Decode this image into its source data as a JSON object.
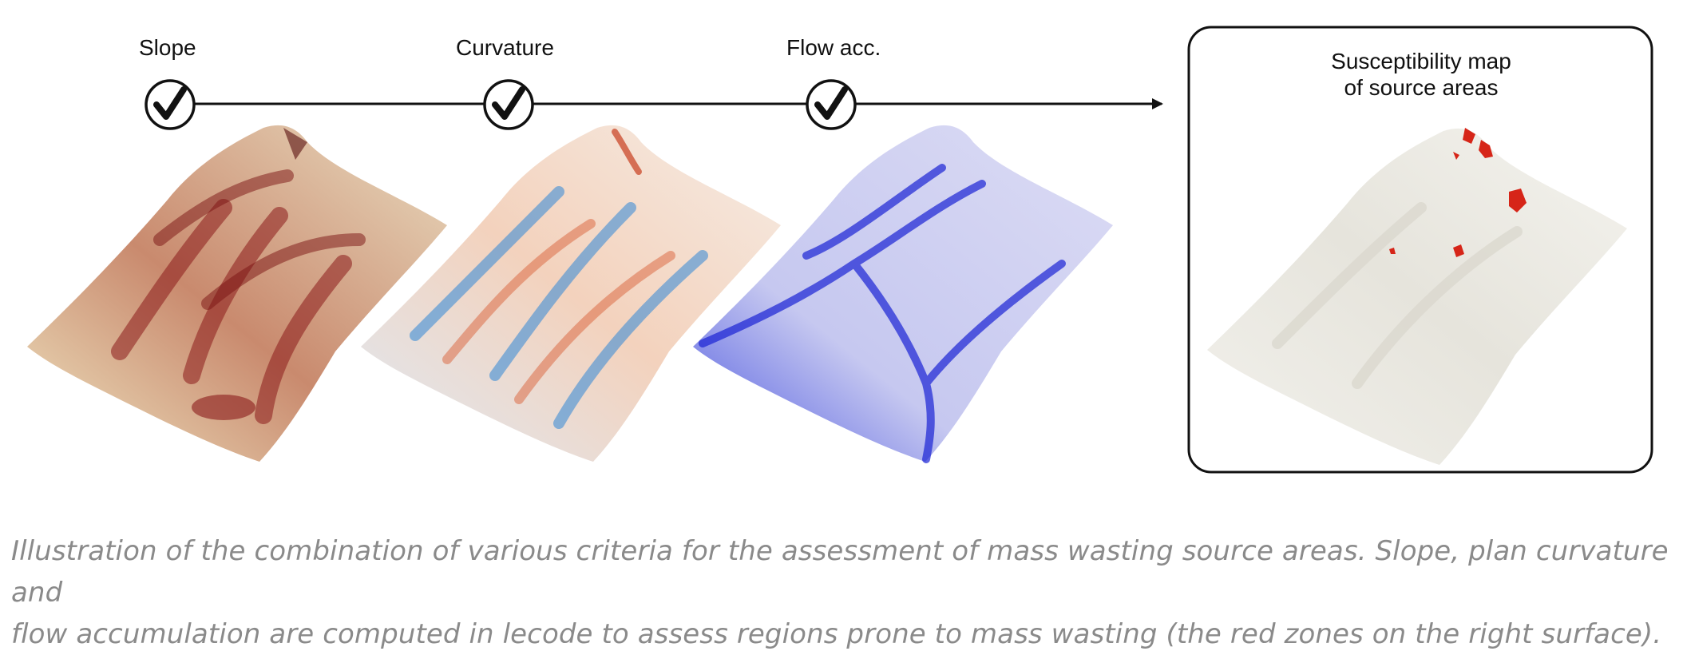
{
  "steps": [
    {
      "label": "Slope",
      "icon": "check-icon"
    },
    {
      "label": "Curvature",
      "icon": "check-icon"
    },
    {
      "label": "Flow acc.",
      "icon": "check-icon"
    }
  ],
  "result": {
    "title_line1": "Susceptibility map",
    "title_line2": "of source areas"
  },
  "surfaces": [
    {
      "name": "slope",
      "base": "#ece4c0",
      "accent": "#8b1a1a"
    },
    {
      "name": "curvature",
      "base": "#f3ede6",
      "accent": "#d9623a",
      "accent2": "#3f8ed6"
    },
    {
      "name": "flow-accumulation",
      "base": "#c9cbf0",
      "accent": "#1a22d4"
    },
    {
      "name": "susceptibility",
      "base": "#eeede6",
      "accent": "#d62518"
    }
  ],
  "caption": {
    "line1": "Illustration of the combination of various criteria for the assessment of mass wasting source areas. Slope, plan curvature and",
    "line2": "flow accumulation are computed in lecode to assess regions prone to mass wasting (the red zones on the right surface)."
  }
}
